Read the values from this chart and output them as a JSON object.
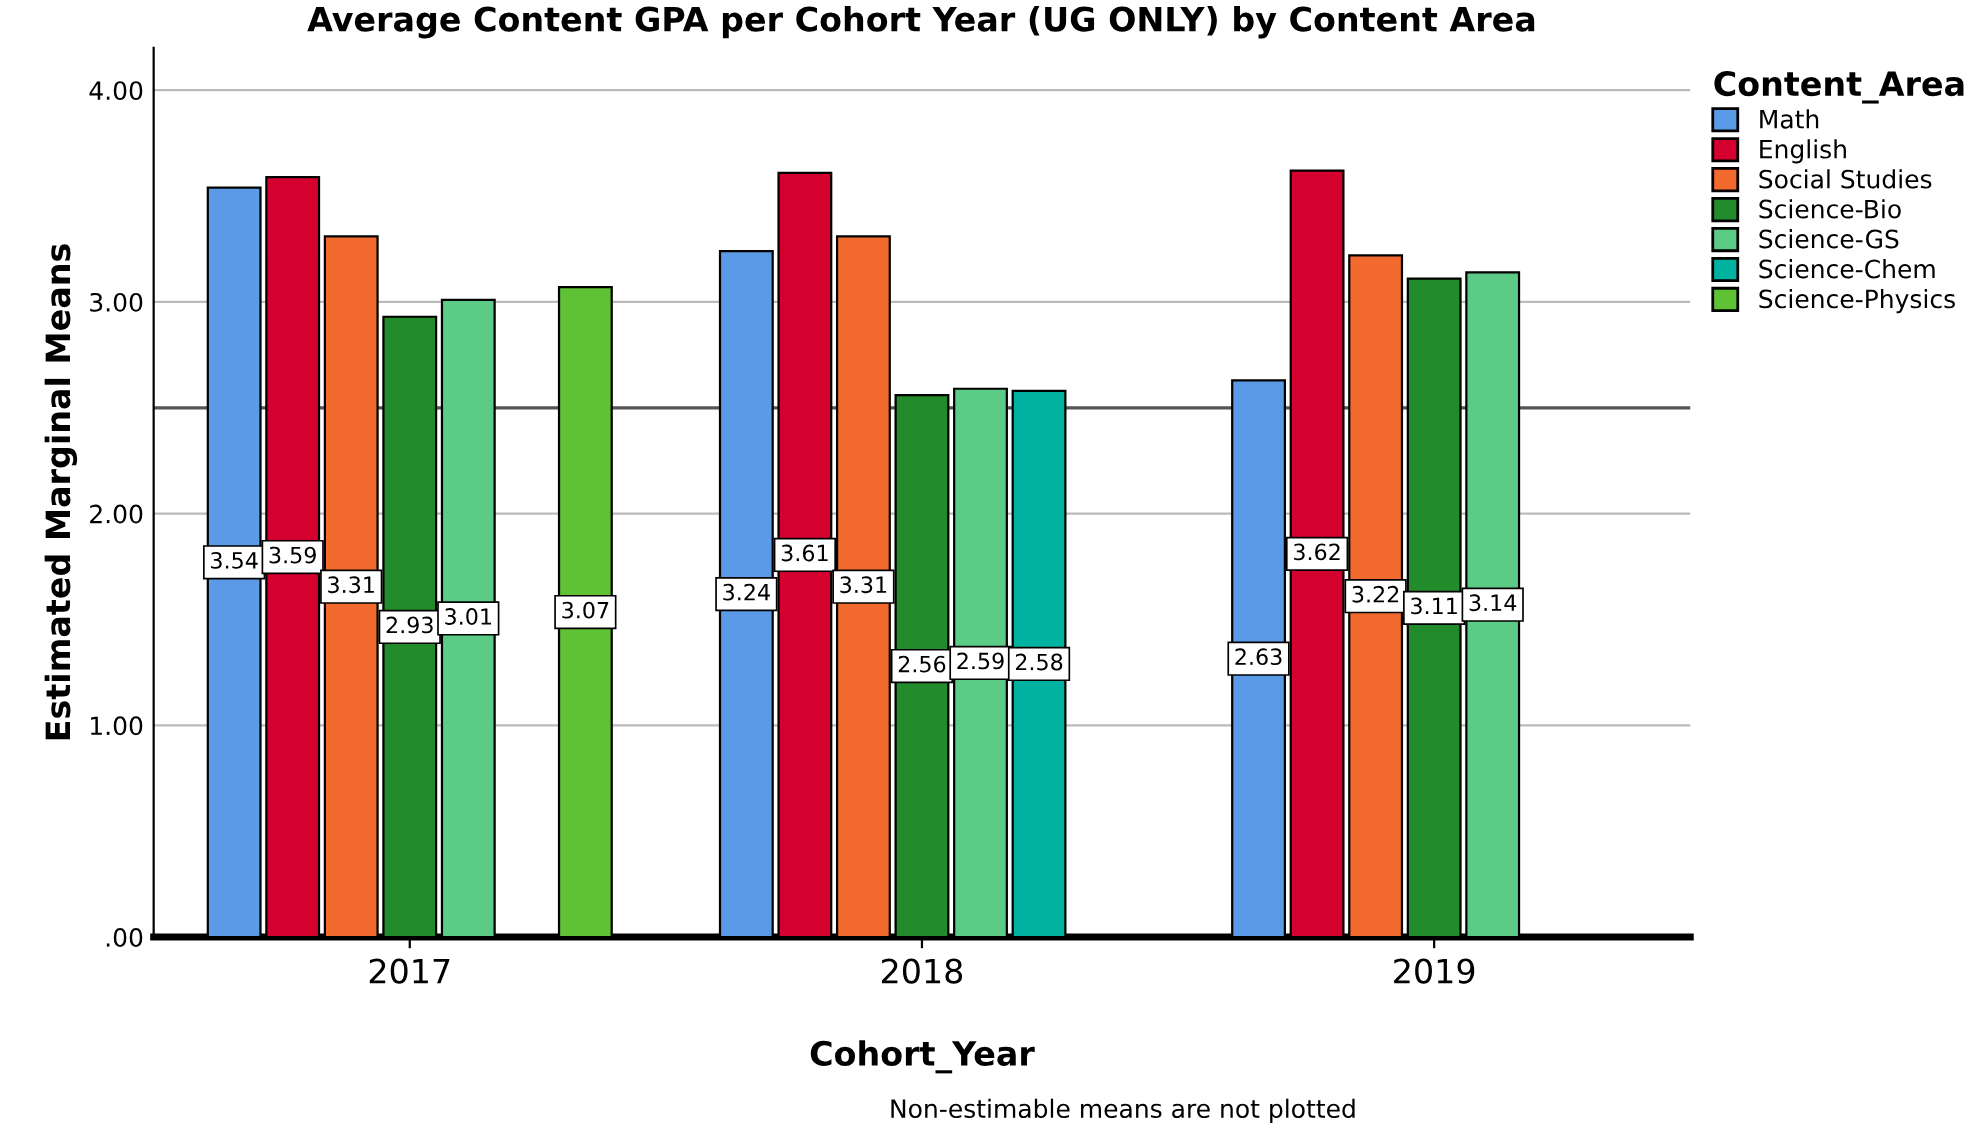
{
  "chart_data": {
    "type": "bar",
    "title": "Average Content GPA per Cohort Year (UG ONLY) by Content Area",
    "xlabel": "Cohort_Year",
    "ylabel": "Estimated Marginal Means",
    "legend_title": "Content_Area",
    "categories": [
      "2017",
      "2018",
      "2019"
    ],
    "series": [
      {
        "name": "Math",
        "color": "#5b9ae6",
        "values": [
          3.54,
          3.24,
          2.63
        ]
      },
      {
        "name": "English",
        "color": "#d4002e",
        "values": [
          3.59,
          3.61,
          3.62
        ]
      },
      {
        "name": "Social Studies",
        "color": "#f26a2d",
        "values": [
          3.31,
          3.31,
          3.22
        ]
      },
      {
        "name": "Science-Bio",
        "color": "#228b2b",
        "values": [
          2.93,
          2.56,
          3.11
        ]
      },
      {
        "name": "Science-GS",
        "color": "#5ccb85",
        "values": [
          3.01,
          2.59,
          3.14
        ]
      },
      {
        "name": "Science-Chem",
        "color": "#00b3a1",
        "values": [
          null,
          2.58,
          null
        ]
      },
      {
        "name": "Science-Physics",
        "color": "#5ec234",
        "values": [
          3.07,
          null,
          null
        ]
      }
    ],
    "ylim": [
      0,
      4.2
    ],
    "yticks": [
      {
        "value": 0,
        "label": ".00"
      },
      {
        "value": 1,
        "label": "1.00"
      },
      {
        "value": 2,
        "label": "2.00"
      },
      {
        "value": 3,
        "label": "3.00"
      },
      {
        "value": 4,
        "label": "4.00"
      }
    ],
    "ref_lines": [
      {
        "axis": "y",
        "value": 2.5,
        "color": "#555555"
      }
    ],
    "grid": "y",
    "legend": "top right",
    "data_labels": true,
    "annotations": [
      "Non-estimable means are not plotted"
    ]
  }
}
